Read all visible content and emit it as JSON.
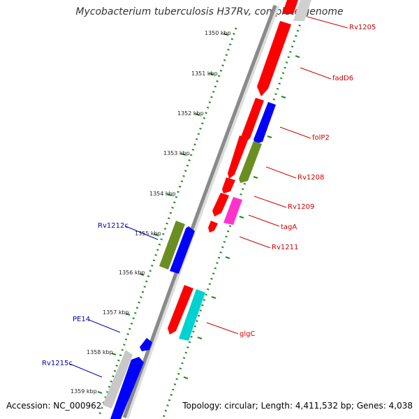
{
  "title": "Mycobacterium tuberculosis H37Rv, complete genome",
  "footer": {
    "accession": "Accession: NC_000962",
    "topology": "Topology: circular; Length: 4,411,532 bp; Genes: 4,038"
  },
  "colors": {
    "backbone": "#8a8a8a",
    "ruler_dots": "#1f8a1f",
    "forward_label": "#cc0000",
    "reverse_label": "#0000aa",
    "red": "#ff0000",
    "blue": "#0000ff",
    "olive": "#6b8e23",
    "magenta": "#ff33cc",
    "cyan": "#00d2d2",
    "gray": "#c8c8c8"
  },
  "ticks": [
    "1350 kbp",
    "1351 kbp",
    "1352 kbp",
    "1353 kbp",
    "1354 kbp",
    "1355 kbp",
    "1356 kbp",
    "1357 kbp",
    "1358 kbp",
    "1359 kbp"
  ],
  "gene_labels": {
    "rv1205": "Rv1205",
    "fadd6": "fadD6",
    "folp2": "folP2",
    "rv1208": "Rv1208",
    "rv1209": "Rv1209",
    "taga": "tagA",
    "rv1211": "Rv1211",
    "glgc": "glgC",
    "rv1212c": "Rv1212c",
    "pe14": "PE14",
    "rv1215c": "Rv1215c"
  }
}
